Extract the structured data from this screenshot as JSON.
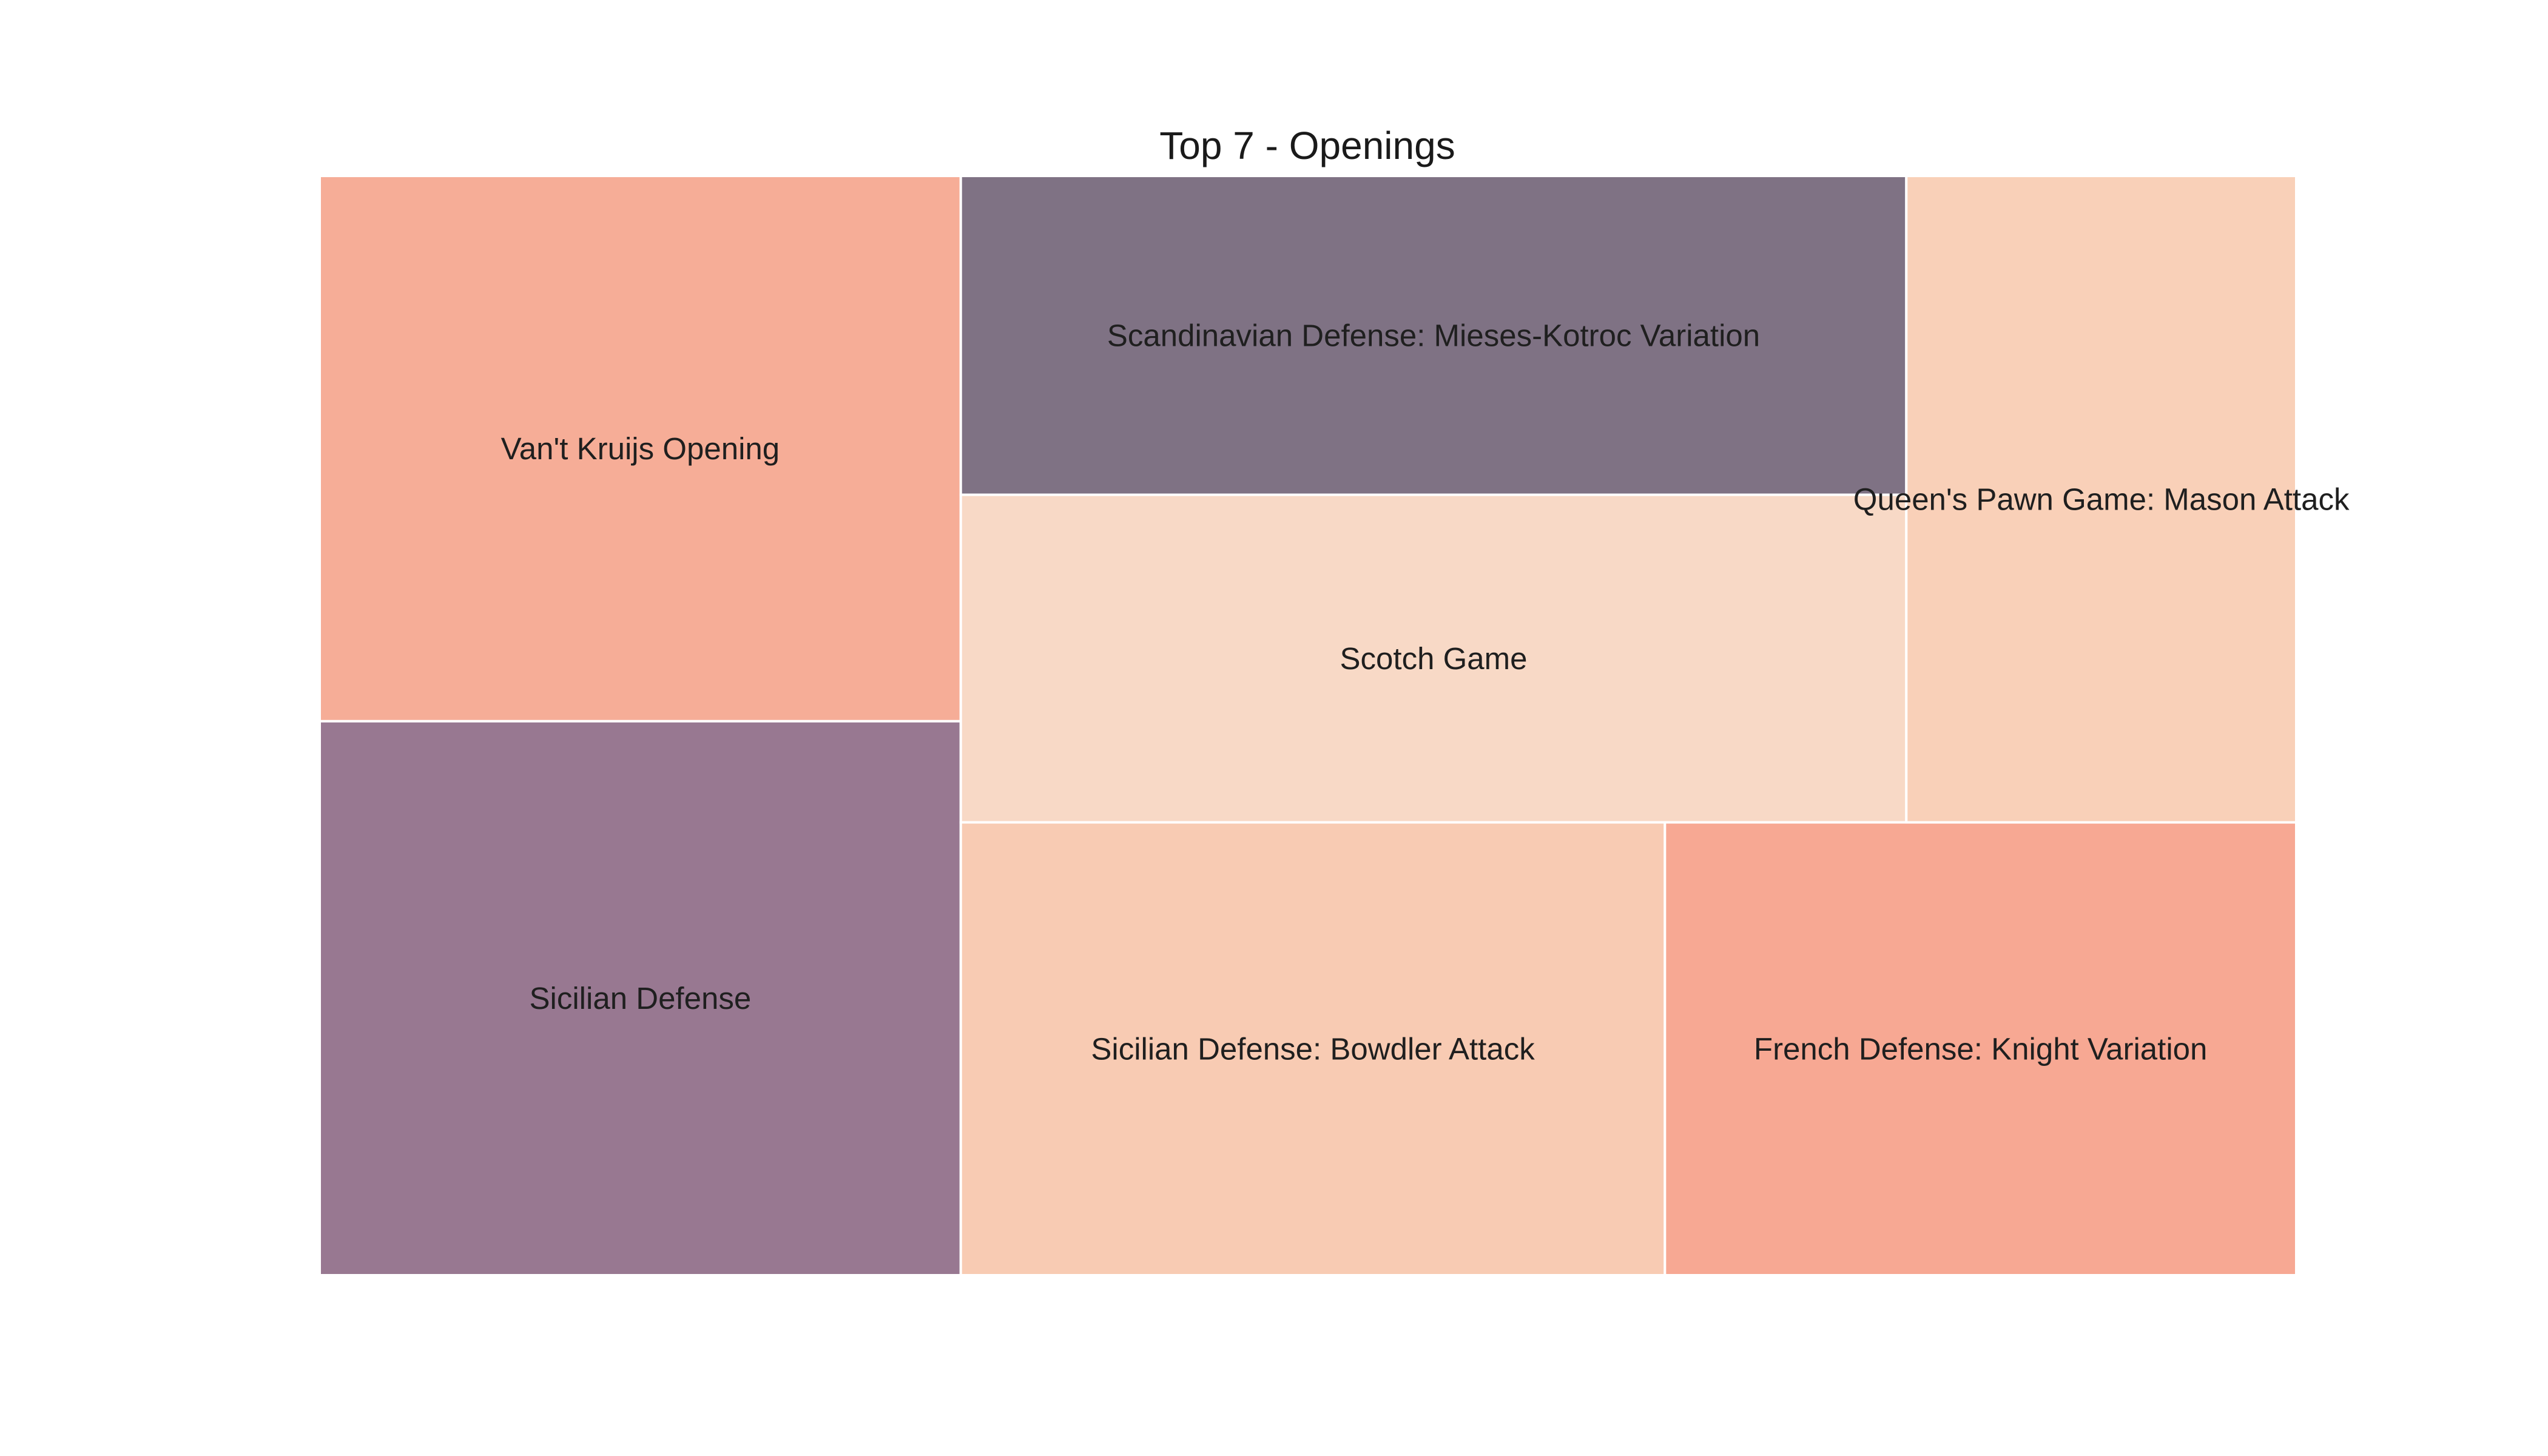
{
  "chart_data": {
    "type": "treemap",
    "title": "Top 7 - Openings",
    "categories": [
      "Van't Kruijs Opening",
      "Sicilian Defense",
      "Scandinavian Defense: Mieses-Kotroc Variation",
      "Scotch Game",
      "Sicilian Defense: Bowdler Attack",
      "French Defense: Knight Variation",
      "Queen's Pawn Game: Mason Attack"
    ],
    "values": [
      1570,
      1595,
      1354,
      1391,
      1432,
      1284,
      1132
    ],
    "colors": [
      "#F6AD97",
      "#987891",
      "#7F7284",
      "#F8D9C6",
      "#F8CBB3",
      "#F7A893",
      "#F9D0B8"
    ],
    "grid": false,
    "legend": "none"
  }
}
